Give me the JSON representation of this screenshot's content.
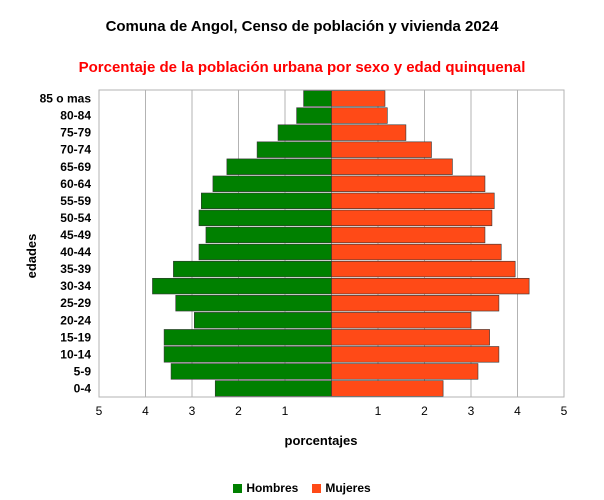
{
  "chart_data": {
    "type": "bar",
    "orientation": "horizontal",
    "title": "Comuna de Angol, Censo de población y vivienda 2024",
    "subtitle": "Porcentaje de la población urbana por sexo y edad quinquenal",
    "xlabel": "porcentajes",
    "ylabel": "edades",
    "xlim": [
      -5,
      5
    ],
    "xticks": [
      "5",
      "4",
      "3",
      "2",
      "1",
      "",
      "1",
      "2",
      "3",
      "4",
      "5"
    ],
    "grid": true,
    "legend_position": "bottom",
    "categories": [
      "0-4",
      "5-9",
      "10-14",
      "15-19",
      "20-24",
      "25-29",
      "30-34",
      "35-39",
      "40-44",
      "45-49",
      "50-54",
      "55-59",
      "60-64",
      "65-69",
      "70-74",
      "75-79",
      "80-84",
      "85 o mas"
    ],
    "series": [
      {
        "name": "Hombres",
        "color": "#008000",
        "values": [
          2.5,
          3.45,
          3.6,
          3.6,
          2.95,
          3.35,
          3.85,
          3.4,
          2.85,
          2.7,
          2.85,
          2.8,
          2.55,
          2.25,
          1.6,
          1.15,
          0.75,
          0.6
        ]
      },
      {
        "name": "Mujeres",
        "color": "#ff4a17",
        "values": [
          2.4,
          3.15,
          3.6,
          3.4,
          3.0,
          3.6,
          4.25,
          3.95,
          3.65,
          3.3,
          3.45,
          3.5,
          3.3,
          2.6,
          2.15,
          1.6,
          1.2,
          1.15
        ]
      }
    ]
  },
  "colors": {
    "subtitle": "#ff0000",
    "grid": "#b3b3b3",
    "bar_outline": "#333333"
  }
}
